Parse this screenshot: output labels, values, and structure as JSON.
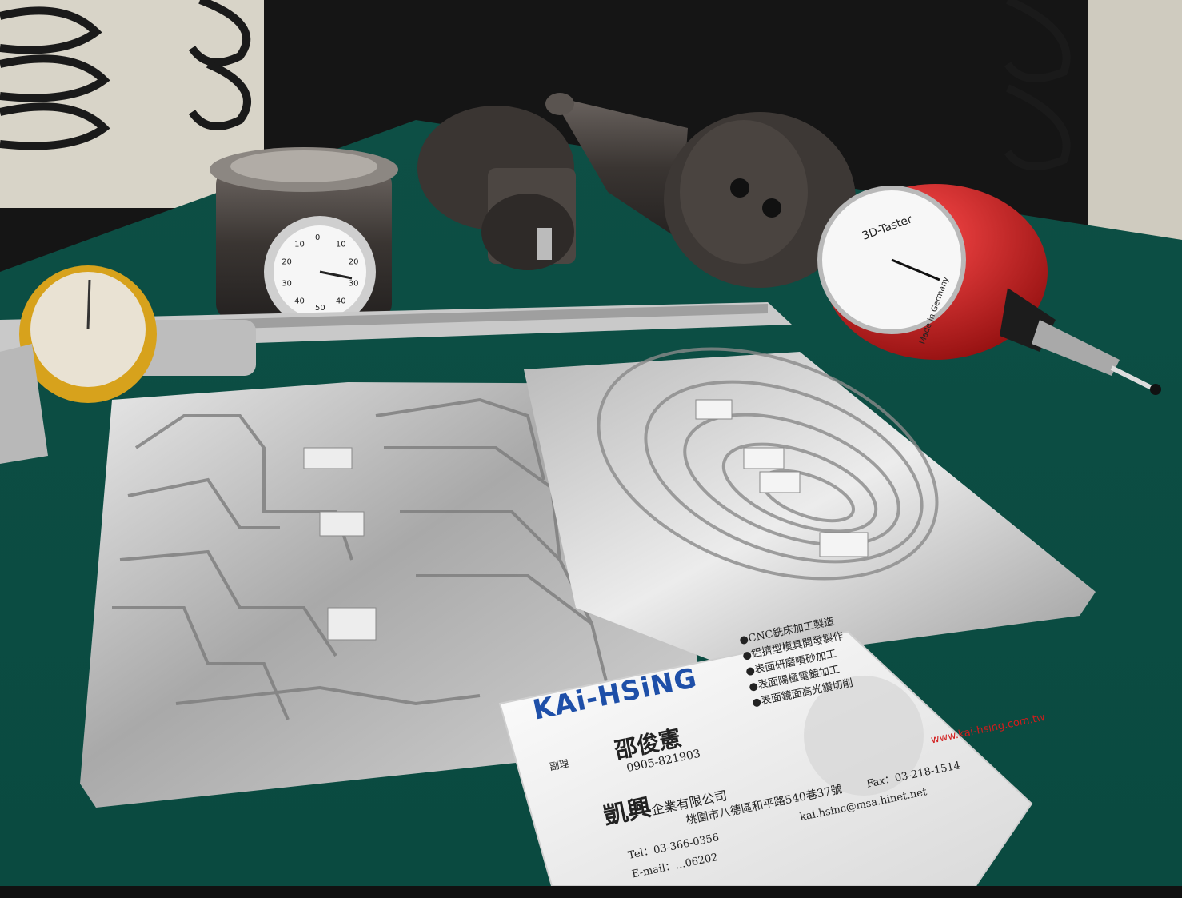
{
  "palette": {
    "mat": "#0f5a4e",
    "mat_dark": "#073a33",
    "background": "#1a1a1a",
    "aluminum": "#c9c9c9",
    "probe_red": "#d11a1a",
    "gauge_gold": "#d7a21c",
    "card": "#f2f2f2",
    "brand_blue": "#1e4fa8",
    "brand_red": "#d21c1c"
  },
  "probe_dial": {
    "label": "3D-Taster",
    "footer": "Made in Germany"
  },
  "indicator_dial": {
    "numbers": [
      "0",
      "10",
      "20",
      "30",
      "40",
      "50",
      "40",
      "30",
      "20",
      "10"
    ]
  },
  "business_card": {
    "brand": "KAi-HSiNG",
    "brand_parts": [
      "KAi-",
      "HSiNG"
    ],
    "services": [
      "●CNC銑床加工製造",
      "●鋁擠型模具開發製作",
      "●表面研磨噴砂加工",
      "●表面陽極電鍍加工",
      "●表面鏡面高光鑽切削"
    ],
    "title": "副理",
    "person_name": "邵俊憲",
    "mobile": "0905-821903",
    "company_name": "凱興",
    "company_suffix": "企業有限公司",
    "address": "桃園市八德區和平路540巷37號",
    "tel": "Tel：03-366-0356",
    "fax": "Fax：03-218-1514",
    "email": "kai.hsinc@msa.hinet.net",
    "website": "www.kai-hsing.com.tw",
    "partial_line": "E-mail：...06202"
  }
}
